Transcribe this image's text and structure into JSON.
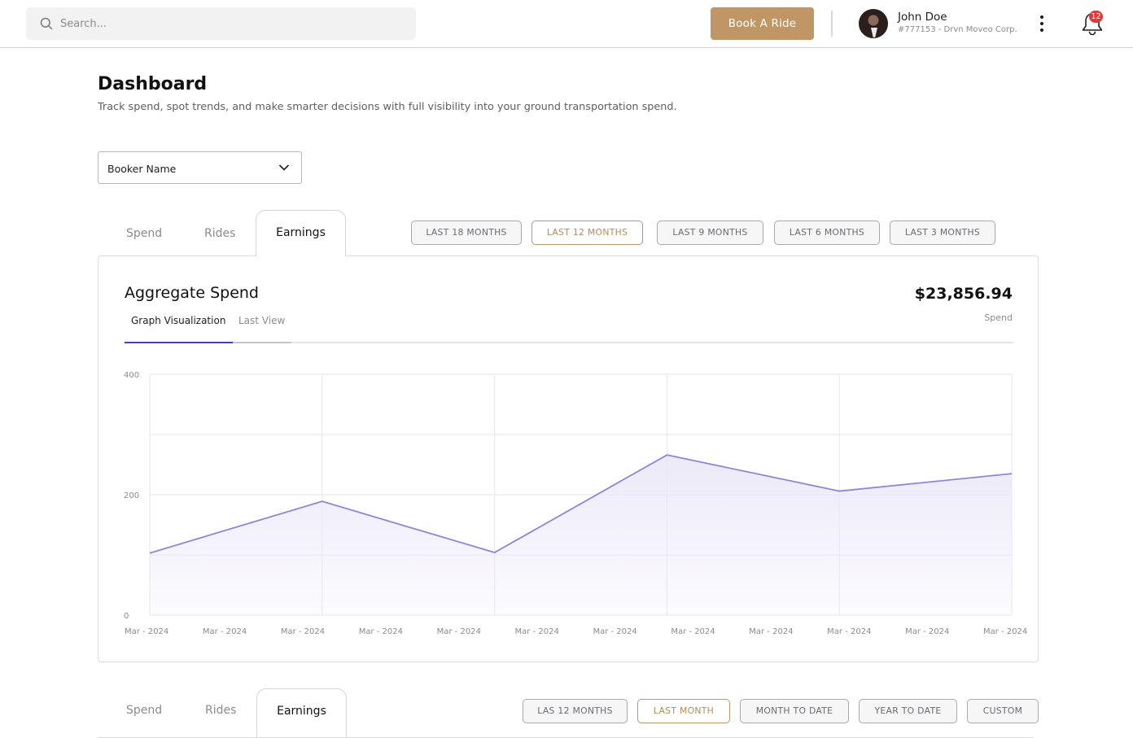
{
  "topbar": {
    "search_placeholder": "Search...",
    "book_button": "Book A Ride",
    "user_name": "John Doe",
    "user_meta": "#777153 - Drvn Moveo Corp.",
    "notification_count": "12",
    "icons": [
      "search-icon",
      "more-vertical-icon",
      "bell-icon"
    ]
  },
  "header": {
    "title": "Dashboard",
    "subtitle": "Track spend, spot trends, and make smarter decisions with full visibility into your ground transportation spend."
  },
  "filter": {
    "booker_label": "Booker Name"
  },
  "section1": {
    "tabs": [
      "Spend",
      "Rides",
      "Earnings"
    ],
    "active_tab": "Earnings",
    "ranges": [
      "LAST 18 MONTHS",
      "LAST 12 MONTHS",
      "LAST 9 MONTHS",
      "LAST 6 MONTHS",
      "LAST 3 MONTHS"
    ],
    "active_range": "LAST 12 MONTHS"
  },
  "card": {
    "title": "Aggregate Spend",
    "amount": "$23,856.94",
    "amount_label": "Spend",
    "subtabs": [
      "Graph Visualization",
      "Last View"
    ],
    "active_subtab": "Graph Visualization"
  },
  "chart_data": {
    "type": "area",
    "title": "",
    "xlabel": "",
    "ylabel": "",
    "x_ticks": [
      "Mar - 2024",
      "Mar - 2024",
      "Mar - 2024",
      "Mar - 2024",
      "Mar - 2024",
      "Mar - 2024",
      "Mar - 2024",
      "Mar - 2024",
      "Mar - 2024",
      "Mar - 2024",
      "Mar - 2024",
      "Mar - 2024"
    ],
    "y_ticks": [
      0,
      200,
      400
    ],
    "ylim": [
      0,
      400
    ],
    "grid": true,
    "line_color": "#8f86d6",
    "fill_color": "#ebe8f8",
    "series": [
      {
        "points": [
          [
            0,
            103
          ],
          [
            1,
            189
          ],
          [
            2,
            104
          ],
          [
            3,
            266
          ],
          [
            4,
            206
          ],
          [
            5,
            235
          ]
        ]
      }
    ]
  },
  "section2": {
    "tabs": [
      "Spend",
      "Rides",
      "Earnings"
    ],
    "active_tab": "Earnings",
    "ranges": [
      "LAS 12 MONTHS",
      "LAST MONTH",
      "MONTH TO DATE",
      "YEAR TO DATE",
      "CUSTOM"
    ],
    "active_range": "LAST MONTH"
  },
  "colors": {
    "accent": "#bf9664",
    "badge": "#e53935",
    "subtab_active": "#4b3fb0"
  }
}
